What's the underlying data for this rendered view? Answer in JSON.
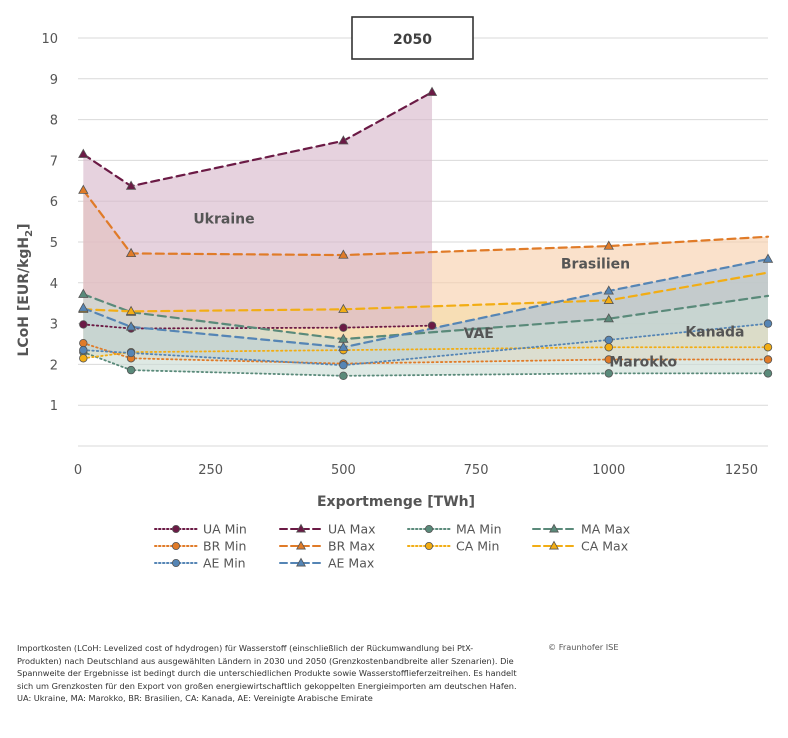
{
  "chart_data": {
    "type": "line",
    "title": "2050",
    "xlabel": "Exportmenge [TWh]",
    "ylabel": "LCoH [EUR/kgH2]",
    "xlim": [
      0,
      1300
    ],
    "ylim": [
      0,
      10
    ],
    "xticks": [
      0,
      250,
      500,
      750,
      1000,
      1250
    ],
    "yticks": [
      1,
      2,
      3,
      4,
      5,
      6,
      7,
      8,
      9,
      10
    ],
    "grid": true,
    "legend_position": "bottom",
    "colors": {
      "ua": "#6b1a45",
      "br": "#e07b28",
      "ca": "#f2ad14",
      "ae": "#5585b5",
      "ma": "#5a8a7a",
      "ua_fill": "#d7b7c9",
      "br_fill": "#f7ceab",
      "ca_fill": "#f5dba8",
      "ae_fill": "#a5c0da",
      "ma_fill": "#c9dcd3",
      "grid": "#d9d9d9"
    },
    "series": [
      {
        "name": "UA Min",
        "id": "ua_min",
        "color": "#6b1a45",
        "style": "dotted",
        "marker": "circle",
        "x": [
          10,
          100,
          500,
          667
        ],
        "y": [
          2.98,
          2.88,
          2.9,
          2.95
        ]
      },
      {
        "name": "UA Max",
        "id": "ua_max",
        "color": "#6b1a45",
        "style": "dashed",
        "marker": "triangle",
        "x": [
          10,
          100,
          500,
          667
        ],
        "y": [
          7.15,
          6.37,
          7.48,
          8.67
        ]
      },
      {
        "name": "MA Min",
        "id": "ma_min",
        "color": "#5a8a7a",
        "style": "dotted",
        "marker": "circle",
        "x": [
          10,
          100,
          500,
          1000,
          1300
        ],
        "y": [
          2.3,
          1.86,
          1.72,
          1.78,
          1.78
        ]
      },
      {
        "name": "MA Max",
        "id": "ma_max",
        "color": "#5a8a7a",
        "style": "dashed",
        "marker": "triangle",
        "x": [
          10,
          100,
          500,
          1000,
          1300
        ],
        "y": [
          3.72,
          3.28,
          2.62,
          3.12,
          3.68
        ]
      },
      {
        "name": "BR Min",
        "id": "br_min",
        "color": "#e07b28",
        "style": "dotted",
        "marker": "circle",
        "x": [
          10,
          100,
          500,
          1000,
          1300
        ],
        "y": [
          2.52,
          2.15,
          2.02,
          2.12,
          2.12
        ]
      },
      {
        "name": "BR Max",
        "id": "br_max",
        "color": "#e07b28",
        "style": "dashed",
        "marker": "triangle",
        "x": [
          10,
          100,
          500,
          1000,
          1300
        ],
        "y": [
          6.27,
          4.72,
          4.68,
          4.9,
          5.13
        ]
      },
      {
        "name": "CA Min",
        "id": "ca_min",
        "color": "#f2ad14",
        "style": "dotted",
        "marker": "circle",
        "x": [
          10,
          100,
          500,
          1000,
          1300
        ],
        "y": [
          2.15,
          2.3,
          2.35,
          2.42,
          2.42
        ]
      },
      {
        "name": "CA Max",
        "id": "ca_max",
        "color": "#f2ad14",
        "style": "dashed",
        "marker": "triangle",
        "x": [
          10,
          100,
          500,
          1000,
          1300
        ],
        "y": [
          3.35,
          3.3,
          3.35,
          3.57,
          4.25
        ]
      },
      {
        "name": "AE Min",
        "id": "ae_min",
        "color": "#5585b5",
        "style": "dotted",
        "marker": "circle",
        "x": [
          10,
          100,
          500,
          1000,
          1300
        ],
        "y": [
          2.35,
          2.28,
          1.98,
          2.6,
          3.0
        ]
      },
      {
        "name": "AE Max",
        "id": "ae_max",
        "color": "#5585b5",
        "style": "dashed",
        "marker": "triangle",
        "x": [
          10,
          100,
          500,
          1000,
          1300
        ],
        "y": [
          3.38,
          2.92,
          2.42,
          3.8,
          4.58
        ]
      }
    ],
    "bands": [
      {
        "country": "Brasilien",
        "lower": "br_min",
        "upper": "br_max",
        "fill": "#f7ceab"
      },
      {
        "country": "Kanada",
        "lower": "ca_min",
        "upper": "ca_max",
        "fill": "#f5dba8"
      },
      {
        "country": "Ukraine",
        "lower": "ua_min",
        "upper": "ua_max",
        "fill": "#d7b7c9"
      },
      {
        "country": "VAE",
        "lower": "ae_min",
        "upper": "ae_max",
        "fill": "#a5c0da"
      },
      {
        "country": "Marokko",
        "lower": "ma_min",
        "upper": "ma_max",
        "fill": "#c9dcd3"
      }
    ],
    "annotations": [
      {
        "text": "Ukraine",
        "x": 275,
        "y": 5.45
      },
      {
        "text": "Brasilien",
        "x": 975,
        "y": 4.35
      },
      {
        "text": "VAE",
        "x": 755,
        "y": 2.65
      },
      {
        "text": "Kanada",
        "x": 1200,
        "y": 2.68
      },
      {
        "text": "Marokko",
        "x": 1065,
        "y": 1.95
      }
    ],
    "legend_order": [
      "ua_min",
      "ua_max",
      "ma_min",
      "ma_max",
      "br_min",
      "br_max",
      "ca_min",
      "ca_max",
      "ae_min",
      "ae_max"
    ]
  },
  "caption": "Importkosten (LCoH: Levelized cost of hdydrogen) für Wasserstoff (einschließlich der Rückumwandlung bei PtX-Produkten) nach Deutschland aus ausgewählten Ländern in 2030 und 2050 (Grenzkostenbandbreite aller Szenarien). Die Spannweite der Ergebnisse ist bedingt durch die unterschiedlichen Produkte sowie Wasserstofflieferzeitreihen. Es handelt sich um Grenzkosten für den Export von großen energiewirtschaftlich gekoppelten Energieimporten am deutschen Hafen. UA: Ukraine, MA: Marokko, BR: Brasilien, CA: Kanada, AE: Vereinigte Arabische Emirate",
  "credit": "© Fraunhofer ISE"
}
